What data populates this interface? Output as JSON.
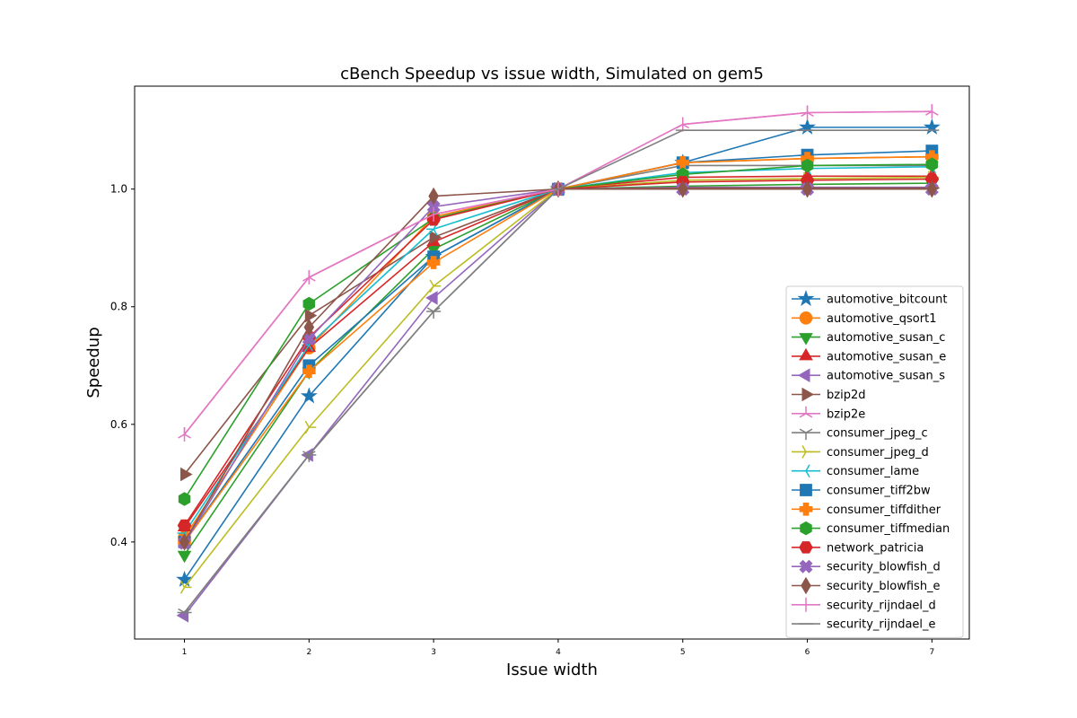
{
  "chart_data": {
    "type": "line",
    "title": "cBench Speedup vs issue width, Simulated on gem5",
    "xlabel": "Issue width",
    "ylabel": "Speedup",
    "x": [
      1,
      2,
      3,
      4,
      5,
      6,
      7
    ],
    "xlim": [
      0.6,
      7.3
    ],
    "ylim": [
      0.235,
      1.175
    ],
    "yticks": [
      0.4,
      0.6,
      0.8,
      1.0
    ],
    "ytick_labels": [
      "0.4",
      "0.6",
      "0.8",
      "1.0"
    ],
    "xtick_labels": [
      "1",
      "2",
      "3",
      "4",
      "5",
      "6",
      "7"
    ],
    "legend_position": "lower-right",
    "series": [
      {
        "name": "automotive_bitcount",
        "color": "#1f77b4",
        "marker": "star",
        "values": [
          0.336,
          0.648,
          0.885,
          1.0,
          1.045,
          1.105,
          1.105
        ]
      },
      {
        "name": "automotive_qsort1",
        "color": "#ff7f0e",
        "marker": "circle",
        "values": [
          0.408,
          0.73,
          0.953,
          1.0,
          1.045,
          1.052,
          1.055
        ]
      },
      {
        "name": "automotive_susan_c",
        "color": "#2ca02c",
        "marker": "triangle-down",
        "values": [
          0.378,
          0.69,
          0.898,
          1.0,
          1.005,
          1.008,
          1.01
        ]
      },
      {
        "name": "automotive_susan_e",
        "color": "#d62728",
        "marker": "triangle-up",
        "values": [
          0.425,
          0.73,
          0.91,
          1.0,
          1.02,
          1.022,
          1.022
        ]
      },
      {
        "name": "automotive_susan_s",
        "color": "#9467bd",
        "marker": "triangle-left",
        "values": [
          0.275,
          0.548,
          0.815,
          1.0,
          1.003,
          1.003,
          1.003
        ]
      },
      {
        "name": "bzip2d",
        "color": "#8c564b",
        "marker": "triangle-right",
        "values": [
          0.515,
          0.785,
          0.918,
          1.0,
          1.002,
          1.002,
          1.002
        ]
      },
      {
        "name": "bzip2e",
        "color": "#e377c2",
        "marker": "tri-down",
        "values": [
          0.583,
          0.85,
          0.957,
          1.0,
          1.11,
          1.13,
          1.132
        ]
      },
      {
        "name": "consumer_jpeg_c",
        "color": "#7f7f7f",
        "marker": "tri-up",
        "values": [
          0.28,
          0.548,
          0.792,
          1.0,
          1.04,
          1.04,
          1.04
        ]
      },
      {
        "name": "consumer_jpeg_d",
        "color": "#bcbd22",
        "marker": "tri-left",
        "values": [
          0.323,
          0.595,
          0.835,
          1.0,
          1.015,
          1.018,
          1.02
        ]
      },
      {
        "name": "consumer_lame",
        "color": "#17becf",
        "marker": "tri-right",
        "values": [
          0.415,
          0.735,
          0.932,
          1.0,
          1.028,
          1.035,
          1.038
        ]
      },
      {
        "name": "consumer_tiff2bw",
        "color": "#1f77b4",
        "marker": "square",
        "values": [
          0.4,
          0.7,
          0.885,
          1.0,
          1.045,
          1.058,
          1.065
        ]
      },
      {
        "name": "consumer_tiffdither",
        "color": "#ff7f0e",
        "marker": "plus",
        "values": [
          0.4,
          0.69,
          0.875,
          1.0,
          1.045,
          1.052,
          1.055
        ]
      },
      {
        "name": "consumer_tiffmedian",
        "color": "#2ca02c",
        "marker": "hexagon",
        "values": [
          0.473,
          0.805,
          0.95,
          1.0,
          1.025,
          1.04,
          1.042
        ]
      },
      {
        "name": "network_patricia",
        "color": "#d62728",
        "marker": "hexagon2",
        "values": [
          0.428,
          0.748,
          0.948,
          1.0,
          1.012,
          1.015,
          1.017
        ]
      },
      {
        "name": "security_blowfish_d",
        "color": "#9467bd",
        "marker": "x-filled",
        "values": [
          0.398,
          0.745,
          0.97,
          1.0,
          1.0,
          1.0,
          1.0
        ]
      },
      {
        "name": "security_blowfish_e",
        "color": "#8c564b",
        "marker": "diamond",
        "values": [
          0.4,
          0.765,
          0.988,
          1.0,
          1.0,
          1.0,
          1.0
        ]
      },
      {
        "name": "security_rijndael_d",
        "color": "#e377c2",
        "marker": "vline",
        "values": [
          0.583,
          0.85,
          0.957,
          1.0,
          1.11,
          1.13,
          1.132
        ]
      },
      {
        "name": "security_rijndael_e",
        "color": "#7f7f7f",
        "marker": "hline",
        "values": [
          0.28,
          0.548,
          0.792,
          1.0,
          1.1,
          1.1,
          1.1
        ]
      }
    ]
  }
}
